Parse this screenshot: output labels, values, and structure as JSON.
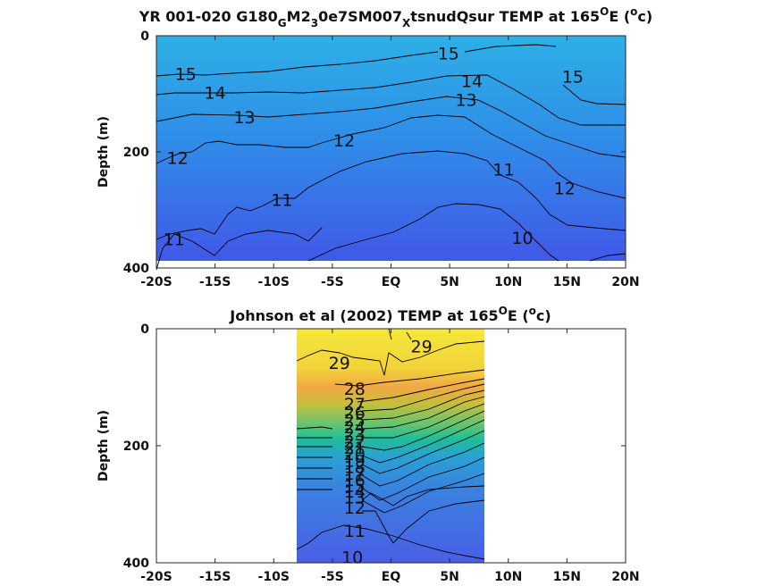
{
  "colors": {
    "model_top": "#2db0e6",
    "model_bottom": "#4156e8",
    "obs_warm": "#f5e83a",
    "obs_mid": "#1fbf98",
    "obs_deep": "#4a64e6",
    "contour": "#000000"
  },
  "chart_data": [
    {
      "type": "heatmap",
      "title_parts": {
        "a": "YR 001-020 G180",
        "sub1": "G",
        "b": "M2",
        "sub2": "3",
        "c": "0e7SM007",
        "sub3": "X",
        "d": "tsnudQsur TEMP at 165",
        "sup": "O",
        "e": "E (",
        "sup2": "o",
        "f": "c)"
      },
      "ylabel": "Depth (m)",
      "x_ticks": [
        "-20S",
        "-15S",
        "-10S",
        "-5S",
        "EQ",
        "5N",
        "10N",
        "15N",
        "20N"
      ],
      "x_tick_values": [
        -20,
        -15,
        -10,
        -5,
        0,
        5,
        10,
        15,
        20
      ],
      "y_ticks": [
        "0",
        "200",
        "400"
      ],
      "y_tick_values": [
        0,
        200,
        400
      ],
      "xlim": [
        -20,
        20
      ],
      "ylim": [
        0,
        400
      ],
      "data_extent": {
        "x": [
          -20,
          20
        ],
        "y": [
          0,
          385
        ]
      },
      "contour_labels": [
        {
          "text": "15",
          "x": -17.5,
          "y": 65
        },
        {
          "text": "14",
          "x": -15.0,
          "y": 98
        },
        {
          "text": "13",
          "x": -12.5,
          "y": 140
        },
        {
          "text": "12",
          "x": -18.2,
          "y": 210
        },
        {
          "text": "11",
          "x": -9.3,
          "y": 282
        },
        {
          "text": "11",
          "x": -18.5,
          "y": 350
        },
        {
          "text": "12",
          "x": -4.0,
          "y": 180
        },
        {
          "text": "15",
          "x": 4.9,
          "y": 30
        },
        {
          "text": "14",
          "x": 6.9,
          "y": 78
        },
        {
          "text": "13",
          "x": 6.4,
          "y": 110
        },
        {
          "text": "11",
          "x": 9.6,
          "y": 230
        },
        {
          "text": "12",
          "x": 14.8,
          "y": 262
        },
        {
          "text": "15",
          "x": 15.5,
          "y": 70
        },
        {
          "text": "10",
          "x": 11.2,
          "y": 348
        }
      ]
    },
    {
      "type": "heatmap",
      "title_parts": {
        "a": "Johnson et al (2002) TEMP at 165",
        "sup": "O",
        "b": "E (",
        "sup2": "o",
        "c": "c)"
      },
      "ylabel": "Depth (m)",
      "x_ticks": [
        "-20S",
        "-15S",
        "-10S",
        "-5S",
        "EQ",
        "5N",
        "10N",
        "15N",
        "20N"
      ],
      "x_tick_values": [
        -20,
        -15,
        -10,
        -5,
        0,
        5,
        10,
        15,
        20
      ],
      "y_ticks": [
        "0",
        "200",
        "400"
      ],
      "y_tick_values": [
        0,
        200,
        400
      ],
      "xlim": [
        -20,
        20
      ],
      "ylim": [
        0,
        400
      ],
      "data_extent": {
        "x": [
          -8,
          8
        ],
        "y": [
          0,
          400
        ]
      },
      "contour_labels": [
        {
          "text": "29",
          "x": -4.4,
          "y": 58
        },
        {
          "text": "29",
          "x": 2.6,
          "y": 30
        },
        {
          "text": "28",
          "x": -3.1,
          "y": 102
        },
        {
          "text": "27",
          "x": -3.1,
          "y": 128
        },
        {
          "text": "26",
          "x": -3.1,
          "y": 143
        },
        {
          "text": "25",
          "x": -3.1,
          "y": 156
        },
        {
          "text": "24",
          "x": -3.1,
          "y": 168
        },
        {
          "text": "23",
          "x": -3.1,
          "y": 180
        },
        {
          "text": "22",
          "x": -3.1,
          "y": 192
        },
        {
          "text": "21",
          "x": -3.1,
          "y": 203
        },
        {
          "text": "20",
          "x": -3.1,
          "y": 214
        },
        {
          "text": "19",
          "x": -3.1,
          "y": 225
        },
        {
          "text": "18",
          "x": -3.1,
          "y": 236
        },
        {
          "text": "17",
          "x": -3.1,
          "y": 247
        },
        {
          "text": "16",
          "x": -3.1,
          "y": 258
        },
        {
          "text": "15",
          "x": -3.1,
          "y": 268
        },
        {
          "text": "14",
          "x": -3.1,
          "y": 278
        },
        {
          "text": "13",
          "x": -3.1,
          "y": 288
        },
        {
          "text": "12",
          "x": -3.1,
          "y": 305
        },
        {
          "text": "11",
          "x": -3.1,
          "y": 345
        },
        {
          "text": "10",
          "x": -3.3,
          "y": 390
        }
      ]
    }
  ]
}
